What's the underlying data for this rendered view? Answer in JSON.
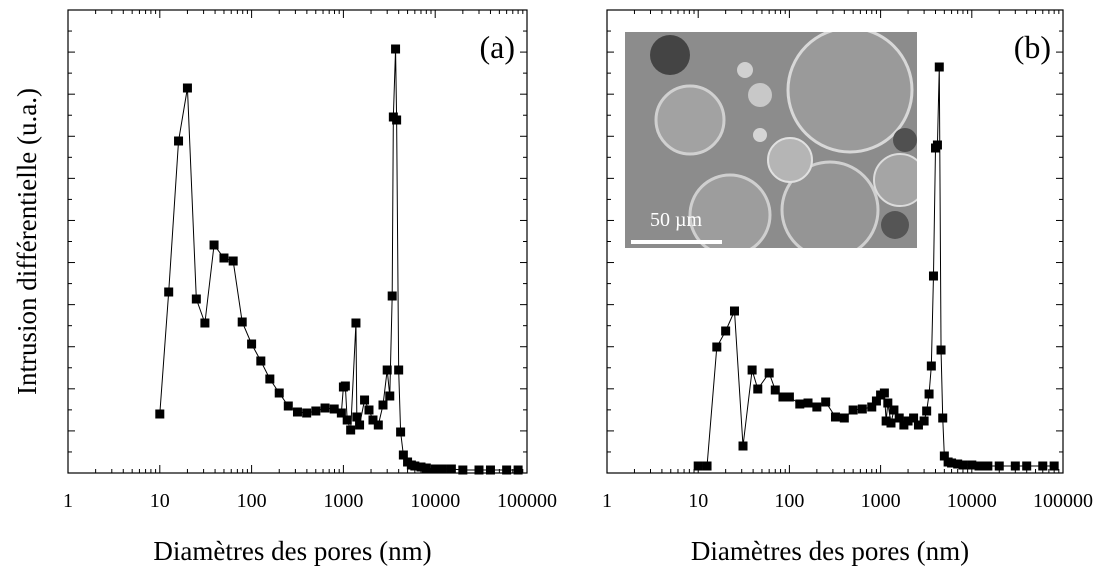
{
  "chart_data": [
    {
      "type": "line",
      "annotation": "(a)",
      "y_label": "Intrusion différentielle (u.a.)",
      "x_label": "Diamètres des pores (nm)",
      "x_scale": "log",
      "marker": "square",
      "color": "#000000",
      "xlim": [
        1,
        100000
      ],
      "xticks": [
        1,
        10,
        100,
        1000,
        10000,
        100000
      ],
      "ylim": [
        0,
        463
      ],
      "x": [
        10,
        12.5,
        16,
        20,
        25,
        31,
        39,
        50,
        63,
        79,
        100,
        126,
        158,
        200,
        251,
        316,
        398,
        501,
        631,
        794,
        950,
        1000,
        1050,
        1100,
        1200,
        1370,
        1400,
        1500,
        1700,
        1900,
        2100,
        2400,
        2700,
        3000,
        3200,
        3400,
        3500,
        3700,
        3800,
        4000,
        4200,
        4500,
        5000,
        5500,
        6000,
        7000,
        8000,
        10000,
        12000,
        15000,
        20000,
        30000,
        40000,
        60000,
        80000
      ],
      "values": [
        59,
        181,
        332,
        385,
        174,
        150,
        228,
        215,
        212,
        151,
        129,
        112,
        94,
        80,
        67,
        61,
        60,
        62,
        65,
        64,
        60,
        86,
        87,
        53,
        43,
        150,
        56,
        48,
        73,
        63,
        53,
        48,
        68,
        103,
        77,
        177,
        356,
        424,
        353,
        103,
        41,
        18,
        11,
        8,
        7,
        6,
        5,
        4,
        4,
        4,
        3,
        3,
        3,
        3,
        3
      ]
    },
    {
      "type": "line",
      "annotation": "(b)",
      "x_label": "Diamètres des pores (nm)",
      "inset_scale_label": "50 µm",
      "x_scale": "log",
      "marker": "square",
      "color": "#000000",
      "xlim": [
        1,
        100000
      ],
      "xticks": [
        1,
        10,
        100,
        1000,
        10000,
        100000
      ],
      "ylim": [
        0,
        463
      ],
      "x": [
        10,
        12.5,
        16,
        20,
        25,
        31,
        39,
        45,
        60,
        70,
        85,
        100,
        130,
        160,
        200,
        250,
        320,
        400,
        500,
        630,
        800,
        900,
        1000,
        1100,
        1150,
        1200,
        1300,
        1400,
        1600,
        1800,
        2000,
        2300,
        2600,
        3000,
        3200,
        3400,
        3600,
        3800,
        4000,
        4200,
        4400,
        4600,
        4800,
        5000,
        5500,
        6000,
        7000,
        8000,
        10000,
        12000,
        15000,
        20000,
        30000,
        40000,
        60000,
        80000
      ],
      "values": [
        7,
        7,
        126,
        142,
        162,
        27,
        103,
        84,
        100,
        83,
        76,
        76,
        69,
        70,
        66,
        71,
        56,
        55,
        63,
        64,
        66,
        72,
        78,
        80,
        52,
        70,
        50,
        63,
        55,
        48,
        52,
        55,
        48,
        52,
        62,
        79,
        107,
        197,
        325,
        328,
        406,
        123,
        55,
        17,
        11,
        10,
        9,
        8,
        8,
        7,
        7,
        7,
        7,
        7,
        7,
        7
      ]
    }
  ]
}
